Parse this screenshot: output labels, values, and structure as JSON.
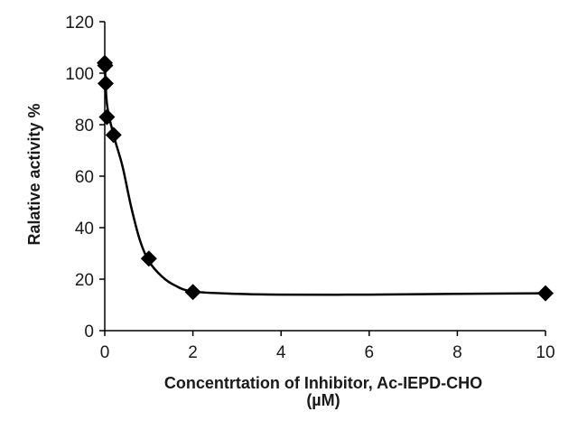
{
  "chart_data": {
    "type": "scatter",
    "title": "",
    "xlabel": "Concentrtation of Inhibitor,  Ac-IEPD-CHO",
    "xlabel_unit": "(µM)",
    "ylabel": "Ralative activity %",
    "xlim": [
      0,
      10
    ],
    "ylim": [
      0,
      120
    ],
    "x_ticks": [
      0,
      2,
      4,
      6,
      8,
      10
    ],
    "y_ticks": [
      0,
      20,
      40,
      60,
      80,
      100,
      120
    ],
    "grid": false,
    "legend": "none",
    "marker": "diamond",
    "color": "#000000",
    "series": [
      {
        "points": [
          {
            "x": 0,
            "y": 104
          },
          {
            "x": 0.01,
            "y": 103
          },
          {
            "x": 0.02,
            "y": 96
          },
          {
            "x": 0.05,
            "y": 83
          },
          {
            "x": 0.2,
            "y": 76
          },
          {
            "x": 1,
            "y": 28
          },
          {
            "x": 2,
            "y": 15
          },
          {
            "x": 10,
            "y": 14.5
          }
        ]
      }
    ],
    "curve": [
      {
        "x": 0,
        "y": 105
      },
      {
        "x": 0.05,
        "y": 88
      },
      {
        "x": 0.2,
        "y": 76
      },
      {
        "x": 0.4,
        "y": 64
      },
      {
        "x": 0.6,
        "y": 48
      },
      {
        "x": 0.8,
        "y": 35
      },
      {
        "x": 1.0,
        "y": 27
      },
      {
        "x": 1.3,
        "y": 21
      },
      {
        "x": 1.6,
        "y": 17.5
      },
      {
        "x": 2.0,
        "y": 15.2
      },
      {
        "x": 3.0,
        "y": 14.3
      },
      {
        "x": 4.0,
        "y": 14.0
      },
      {
        "x": 6.0,
        "y": 14.0
      },
      {
        "x": 8.0,
        "y": 14.3
      },
      {
        "x": 10.0,
        "y": 14.5
      }
    ]
  }
}
